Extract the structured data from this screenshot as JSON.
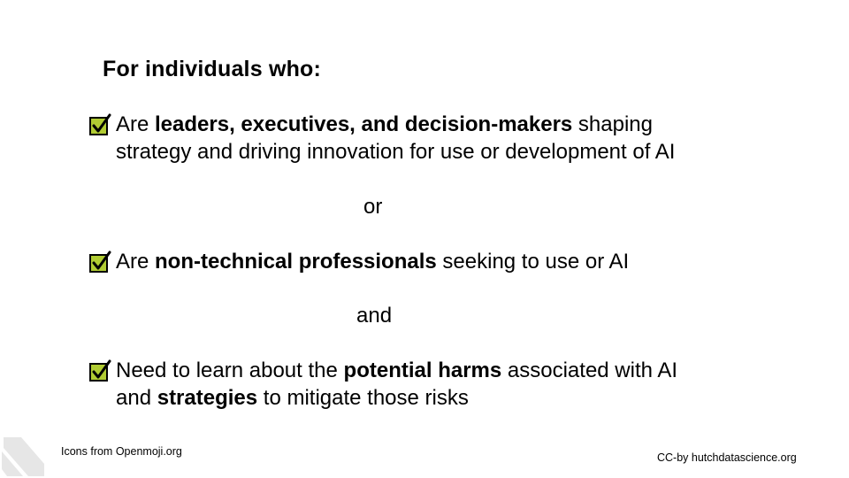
{
  "heading": "For individuals who:",
  "items": [
    {
      "parts": [
        {
          "text": "Are ",
          "bold": false
        },
        {
          "text": "leaders, executives, and decision-makers",
          "bold": true
        },
        {
          "text": " shaping strategy and driving innovation for use or development of AI",
          "bold": false
        }
      ]
    },
    {
      "parts": [
        {
          "text": "Are ",
          "bold": false
        },
        {
          "text": "non-technical professionals",
          "bold": true
        },
        {
          "text": " seeking to use or AI",
          "bold": false
        }
      ]
    },
    {
      "parts": [
        {
          "text": "Need to learn about the ",
          "bold": false
        },
        {
          "text": "potential harms",
          "bold": true
        },
        {
          "text": " associated with AI and ",
          "bold": false
        },
        {
          "text": "strategies",
          "bold": true
        },
        {
          "text": " to mitigate those risks",
          "bold": false
        }
      ]
    }
  ],
  "connectors": {
    "first": "or",
    "second": "and"
  },
  "footer": {
    "icons_credit": "Icons from Openmoji.org",
    "license": "CC-by hutchdatascience.org"
  },
  "icon": "check-mark-button-icon",
  "colors": {
    "check_fill": "#B1CC33",
    "check_stroke": "#000000",
    "logo": "#E6E6E6"
  }
}
